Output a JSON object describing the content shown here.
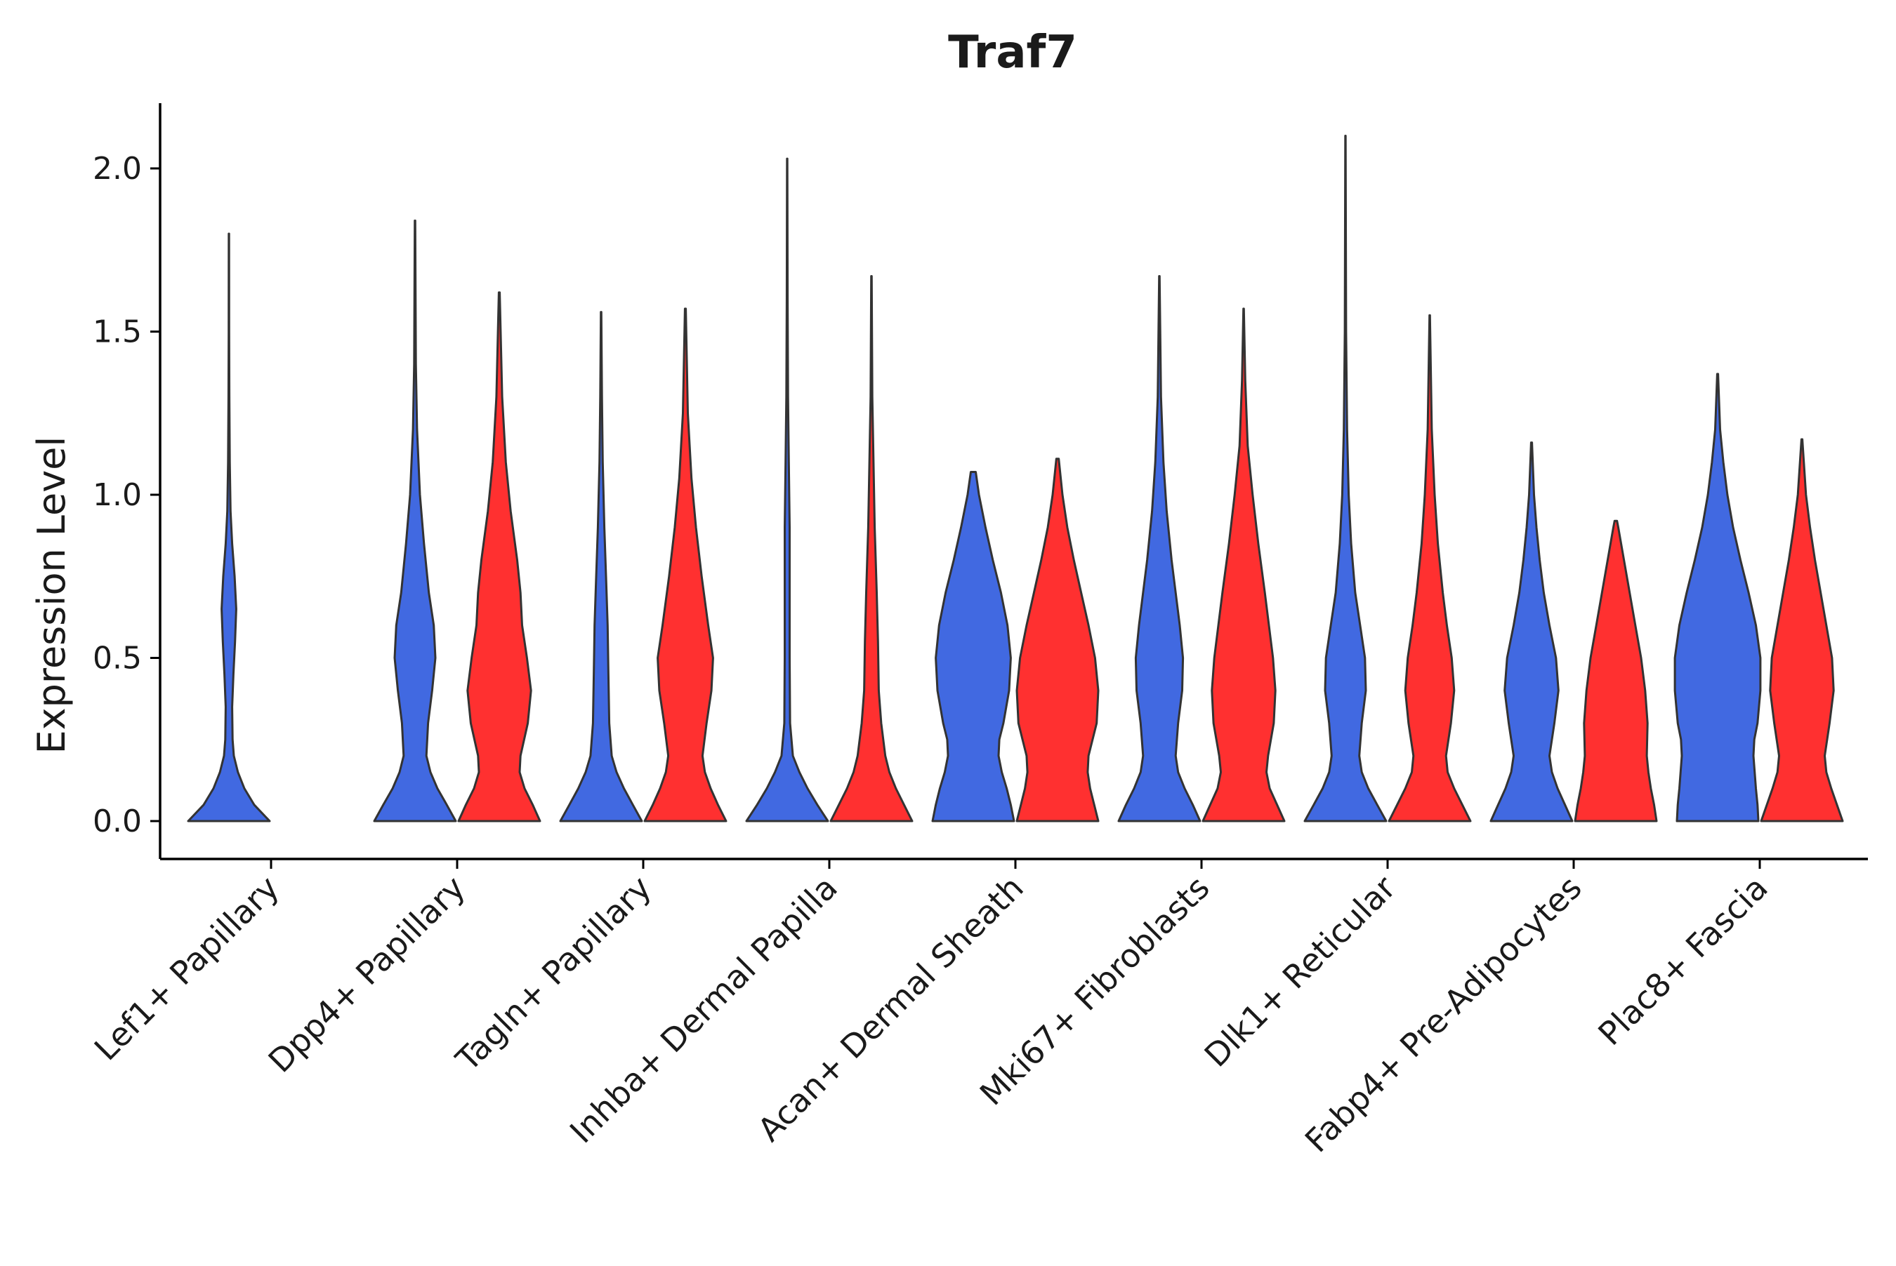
{
  "chart_data": {
    "type": "violin",
    "title": "Traf7",
    "xlabel": "",
    "ylabel": "Expression Level",
    "ylim": [
      -0.1,
      2.2
    ],
    "yticks": [
      "0.0",
      "0.5",
      "1.0",
      "1.5",
      "2.0"
    ],
    "ytick_values": [
      0,
      0.5,
      1.0,
      1.5,
      2.0
    ],
    "grid": false,
    "legend": "none",
    "group_colors": [
      "#4169E1",
      "#FF3030"
    ],
    "categories": [
      "Lef1+ Papillary",
      "Dpp4+ Papillary",
      "Tagln+ Papillary",
      "Inhba+ Dermal Papilla",
      "Acan+ Dermal Sheath",
      "Mki67+ Fibroblasts",
      "Dlk1+ Reticular",
      "Fabp4+ Pre-Adipocytes",
      "Plac8+ Fascia"
    ],
    "violins": [
      {
        "category": "Lef1+ Papillary",
        "group": 0,
        "max": 1.8,
        "profile": [
          [
            0,
            1.0
          ],
          [
            0.05,
            0.62
          ],
          [
            0.1,
            0.38
          ],
          [
            0.15,
            0.22
          ],
          [
            0.2,
            0.12
          ],
          [
            0.25,
            0.09
          ],
          [
            0.35,
            0.08
          ],
          [
            0.45,
            0.11
          ],
          [
            0.55,
            0.15
          ],
          [
            0.65,
            0.18
          ],
          [
            0.75,
            0.14
          ],
          [
            0.85,
            0.08
          ],
          [
            0.95,
            0.04
          ],
          [
            1.1,
            0.02
          ],
          [
            1.3,
            0.01
          ],
          [
            1.5,
            0.005
          ],
          [
            1.8,
            0.004
          ]
        ]
      },
      {
        "category": "Dpp4+ Papillary",
        "group": 0,
        "max": 1.84,
        "profile": [
          [
            0,
            1.0
          ],
          [
            0.05,
            0.78
          ],
          [
            0.1,
            0.55
          ],
          [
            0.15,
            0.38
          ],
          [
            0.2,
            0.28
          ],
          [
            0.3,
            0.32
          ],
          [
            0.4,
            0.42
          ],
          [
            0.5,
            0.5
          ],
          [
            0.6,
            0.46
          ],
          [
            0.7,
            0.34
          ],
          [
            0.85,
            0.22
          ],
          [
            1.0,
            0.12
          ],
          [
            1.2,
            0.05
          ],
          [
            1.4,
            0.02
          ],
          [
            1.84,
            0.006
          ]
        ]
      },
      {
        "category": "Dpp4+ Papillary",
        "group": 1,
        "max": 1.62,
        "profile": [
          [
            0,
            1.0
          ],
          [
            0.05,
            0.82
          ],
          [
            0.1,
            0.62
          ],
          [
            0.15,
            0.5
          ],
          [
            0.2,
            0.52
          ],
          [
            0.3,
            0.7
          ],
          [
            0.4,
            0.78
          ],
          [
            0.5,
            0.68
          ],
          [
            0.6,
            0.56
          ],
          [
            0.7,
            0.52
          ],
          [
            0.8,
            0.44
          ],
          [
            0.95,
            0.28
          ],
          [
            1.1,
            0.16
          ],
          [
            1.3,
            0.07
          ],
          [
            1.62,
            0.01
          ]
        ]
      },
      {
        "category": "Tagln+ Papillary",
        "group": 0,
        "max": 1.56,
        "profile": [
          [
            0,
            1.0
          ],
          [
            0.05,
            0.78
          ],
          [
            0.1,
            0.56
          ],
          [
            0.15,
            0.38
          ],
          [
            0.2,
            0.26
          ],
          [
            0.3,
            0.2
          ],
          [
            0.45,
            0.18
          ],
          [
            0.6,
            0.16
          ],
          [
            0.75,
            0.12
          ],
          [
            0.9,
            0.08
          ],
          [
            1.1,
            0.04
          ],
          [
            1.3,
            0.02
          ],
          [
            1.56,
            0.006
          ]
        ]
      },
      {
        "category": "Tagln+ Papillary",
        "group": 1,
        "max": 1.57,
        "profile": [
          [
            0,
            1.0
          ],
          [
            0.05,
            0.8
          ],
          [
            0.1,
            0.62
          ],
          [
            0.15,
            0.48
          ],
          [
            0.2,
            0.42
          ],
          [
            0.3,
            0.52
          ],
          [
            0.4,
            0.64
          ],
          [
            0.5,
            0.68
          ],
          [
            0.6,
            0.56
          ],
          [
            0.75,
            0.4
          ],
          [
            0.9,
            0.26
          ],
          [
            1.05,
            0.15
          ],
          [
            1.25,
            0.06
          ],
          [
            1.57,
            0.01
          ]
        ]
      },
      {
        "category": "Inhba+ Dermal Papilla",
        "group": 0,
        "max": 2.03,
        "profile": [
          [
            0,
            1.0
          ],
          [
            0.05,
            0.74
          ],
          [
            0.1,
            0.5
          ],
          [
            0.15,
            0.3
          ],
          [
            0.2,
            0.14
          ],
          [
            0.3,
            0.07
          ],
          [
            0.5,
            0.06
          ],
          [
            0.7,
            0.06
          ],
          [
            0.9,
            0.06
          ],
          [
            1.1,
            0.04
          ],
          [
            1.3,
            0.02
          ],
          [
            1.6,
            0.01
          ],
          [
            2.03,
            0.004
          ]
        ]
      },
      {
        "category": "Inhba+ Dermal Papilla",
        "group": 1,
        "max": 1.67,
        "profile": [
          [
            0,
            1.0
          ],
          [
            0.05,
            0.8
          ],
          [
            0.1,
            0.6
          ],
          [
            0.15,
            0.44
          ],
          [
            0.2,
            0.34
          ],
          [
            0.3,
            0.24
          ],
          [
            0.4,
            0.18
          ],
          [
            0.55,
            0.16
          ],
          [
            0.7,
            0.13
          ],
          [
            0.9,
            0.08
          ],
          [
            1.1,
            0.05
          ],
          [
            1.3,
            0.02
          ],
          [
            1.67,
            0.006
          ]
        ]
      },
      {
        "category": "Acan+ Dermal Sheath",
        "group": 0,
        "max": 1.07,
        "profile": [
          [
            0,
            1.0
          ],
          [
            0.05,
            0.92
          ],
          [
            0.1,
            0.82
          ],
          [
            0.15,
            0.7
          ],
          [
            0.2,
            0.62
          ],
          [
            0.25,
            0.64
          ],
          [
            0.3,
            0.74
          ],
          [
            0.4,
            0.88
          ],
          [
            0.5,
            0.92
          ],
          [
            0.6,
            0.84
          ],
          [
            0.7,
            0.68
          ],
          [
            0.8,
            0.48
          ],
          [
            0.9,
            0.3
          ],
          [
            1.0,
            0.14
          ],
          [
            1.07,
            0.06
          ]
        ]
      },
      {
        "category": "Acan+ Dermal Sheath",
        "group": 1,
        "max": 1.11,
        "profile": [
          [
            0,
            1.0
          ],
          [
            0.05,
            0.9
          ],
          [
            0.1,
            0.8
          ],
          [
            0.15,
            0.74
          ],
          [
            0.2,
            0.76
          ],
          [
            0.25,
            0.86
          ],
          [
            0.3,
            0.96
          ],
          [
            0.4,
            1.0
          ],
          [
            0.5,
            0.92
          ],
          [
            0.6,
            0.76
          ],
          [
            0.7,
            0.58
          ],
          [
            0.8,
            0.4
          ],
          [
            0.9,
            0.24
          ],
          [
            1.0,
            0.12
          ],
          [
            1.11,
            0.03
          ]
        ]
      },
      {
        "category": "Mki67+ Fibroblasts",
        "group": 0,
        "max": 1.67,
        "profile": [
          [
            0,
            1.0
          ],
          [
            0.05,
            0.82
          ],
          [
            0.1,
            0.62
          ],
          [
            0.15,
            0.46
          ],
          [
            0.2,
            0.4
          ],
          [
            0.3,
            0.46
          ],
          [
            0.4,
            0.56
          ],
          [
            0.5,
            0.58
          ],
          [
            0.6,
            0.5
          ],
          [
            0.7,
            0.4
          ],
          [
            0.8,
            0.3
          ],
          [
            0.95,
            0.18
          ],
          [
            1.1,
            0.1
          ],
          [
            1.3,
            0.04
          ],
          [
            1.67,
            0.006
          ]
        ]
      },
      {
        "category": "Mki67+ Fibroblasts",
        "group": 1,
        "max": 1.57,
        "profile": [
          [
            0,
            1.0
          ],
          [
            0.05,
            0.82
          ],
          [
            0.1,
            0.64
          ],
          [
            0.15,
            0.56
          ],
          [
            0.2,
            0.6
          ],
          [
            0.3,
            0.74
          ],
          [
            0.4,
            0.78
          ],
          [
            0.5,
            0.72
          ],
          [
            0.6,
            0.62
          ],
          [
            0.7,
            0.52
          ],
          [
            0.85,
            0.36
          ],
          [
            1.0,
            0.22
          ],
          [
            1.15,
            0.1
          ],
          [
            1.35,
            0.04
          ],
          [
            1.57,
            0.006
          ]
        ]
      },
      {
        "category": "Dlk1+ Reticular",
        "group": 0,
        "max": 2.1,
        "profile": [
          [
            0,
            1.0
          ],
          [
            0.05,
            0.78
          ],
          [
            0.1,
            0.56
          ],
          [
            0.15,
            0.4
          ],
          [
            0.2,
            0.34
          ],
          [
            0.3,
            0.4
          ],
          [
            0.4,
            0.5
          ],
          [
            0.5,
            0.48
          ],
          [
            0.6,
            0.36
          ],
          [
            0.7,
            0.24
          ],
          [
            0.85,
            0.14
          ],
          [
            1.0,
            0.08
          ],
          [
            1.2,
            0.04
          ],
          [
            1.5,
            0.015
          ],
          [
            2.1,
            0.004
          ]
        ]
      },
      {
        "category": "Dlk1+ Reticular",
        "group": 1,
        "max": 1.55,
        "profile": [
          [
            0,
            1.0
          ],
          [
            0.05,
            0.8
          ],
          [
            0.1,
            0.6
          ],
          [
            0.15,
            0.44
          ],
          [
            0.2,
            0.4
          ],
          [
            0.3,
            0.52
          ],
          [
            0.4,
            0.6
          ],
          [
            0.5,
            0.54
          ],
          [
            0.6,
            0.42
          ],
          [
            0.7,
            0.32
          ],
          [
            0.85,
            0.2
          ],
          [
            1.0,
            0.12
          ],
          [
            1.2,
            0.05
          ],
          [
            1.55,
            0.006
          ]
        ]
      },
      {
        "category": "Fabp4+ Pre-Adipocytes",
        "group": 0,
        "max": 1.16,
        "profile": [
          [
            0,
            1.0
          ],
          [
            0.05,
            0.82
          ],
          [
            0.1,
            0.64
          ],
          [
            0.15,
            0.5
          ],
          [
            0.2,
            0.44
          ],
          [
            0.3,
            0.56
          ],
          [
            0.4,
            0.66
          ],
          [
            0.5,
            0.6
          ],
          [
            0.6,
            0.44
          ],
          [
            0.7,
            0.3
          ],
          [
            0.8,
            0.2
          ],
          [
            0.9,
            0.12
          ],
          [
            1.0,
            0.06
          ],
          [
            1.16,
            0.01
          ]
        ]
      },
      {
        "category": "Fabp4+ Pre-Adipocytes",
        "group": 1,
        "max": 0.92,
        "profile": [
          [
            0,
            1.0
          ],
          [
            0.05,
            0.94
          ],
          [
            0.1,
            0.86
          ],
          [
            0.15,
            0.8
          ],
          [
            0.2,
            0.76
          ],
          [
            0.3,
            0.78
          ],
          [
            0.4,
            0.72
          ],
          [
            0.5,
            0.62
          ],
          [
            0.6,
            0.48
          ],
          [
            0.7,
            0.34
          ],
          [
            0.8,
            0.2
          ],
          [
            0.9,
            0.06
          ],
          [
            0.92,
            0.03
          ]
        ]
      },
      {
        "category": "Plac8+ Fascia",
        "group": 0,
        "max": 1.37,
        "profile": [
          [
            0,
            1.0
          ],
          [
            0.05,
            0.98
          ],
          [
            0.1,
            0.94
          ],
          [
            0.2,
            0.88
          ],
          [
            0.25,
            0.9
          ],
          [
            0.3,
            0.98
          ],
          [
            0.4,
            1.05
          ],
          [
            0.5,
            1.05
          ],
          [
            0.6,
            0.94
          ],
          [
            0.7,
            0.76
          ],
          [
            0.8,
            0.56
          ],
          [
            0.9,
            0.38
          ],
          [
            1.0,
            0.24
          ],
          [
            1.1,
            0.14
          ],
          [
            1.2,
            0.06
          ],
          [
            1.37,
            0.01
          ]
        ]
      },
      {
        "category": "Plac8+ Fascia",
        "group": 1,
        "max": 1.17,
        "profile": [
          [
            0,
            1.0
          ],
          [
            0.05,
            0.86
          ],
          [
            0.1,
            0.72
          ],
          [
            0.15,
            0.6
          ],
          [
            0.2,
            0.56
          ],
          [
            0.3,
            0.68
          ],
          [
            0.4,
            0.78
          ],
          [
            0.5,
            0.74
          ],
          [
            0.6,
            0.6
          ],
          [
            0.7,
            0.46
          ],
          [
            0.8,
            0.32
          ],
          [
            0.9,
            0.2
          ],
          [
            1.0,
            0.1
          ],
          [
            1.17,
            0.01
          ]
        ]
      }
    ]
  }
}
